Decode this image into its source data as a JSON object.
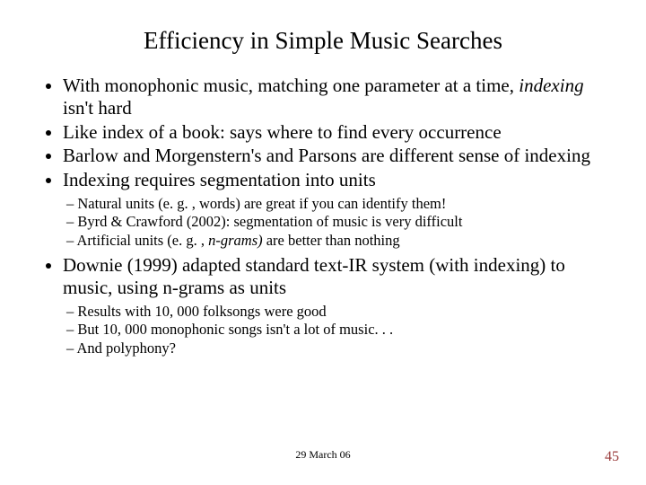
{
  "title": "Efficiency in Simple Music Searches",
  "b1_pre": "With monophonic music, matching one parameter at a time, ",
  "b1_em": "indexing",
  "b1_post": " isn't hard",
  "b2": "Like index of a book: says where to find every occurrence",
  "b3": "Barlow and Morgenstern's and Parsons are different sense of indexing",
  "b4": "Indexing requires segmentation into units",
  "s4a": "Natural units (e. g. , words) are great if you can identify them!",
  "s4b": "Byrd & Crawford (2002): segmentation of music is very difficult",
  "s4c_pre": "Artificial units (e. g. , ",
  "s4c_em": "n-grams)",
  "s4c_post": " are better than nothing",
  "b5": "Downie (1999) adapted standard text-IR system (with indexing) to music, using n-grams as units",
  "s5a": "Results with 10, 000 folksongs were good",
  "s5b": "But 10, 000 monophonic songs isn't a lot of music. . .",
  "s5c": "And polyphony?",
  "footer_date": "29 March 06",
  "page_number": "45"
}
